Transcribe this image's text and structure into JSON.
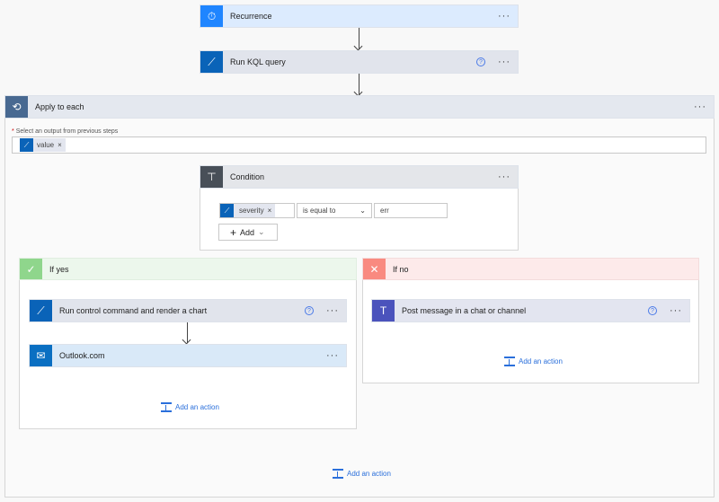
{
  "steps": {
    "recurrence": {
      "label": "Recurrence",
      "icon": "stopwatch-icon"
    },
    "kql": {
      "label": "Run KQL query",
      "icon": "kusto-icon"
    }
  },
  "apply": {
    "label": "Apply to each",
    "field_label": "Select an output from previous steps",
    "required_mark": "*",
    "token": "value",
    "remove": "×"
  },
  "condition": {
    "label": "Condition",
    "left_token": "severity",
    "remove": "×",
    "operator": "is equal to",
    "value": "err",
    "add_label": "Add"
  },
  "yes": {
    "label": "If yes",
    "actions": [
      "Run control command and render a chart",
      "Outlook.com"
    ],
    "add_action": "Add an action"
  },
  "no": {
    "label": "If no",
    "actions": [
      "Post message in a chat or channel"
    ],
    "add_action": "Add an action"
  },
  "bottom_add_action": "Add an action",
  "menu_dots": "···",
  "help": "?",
  "colors": {
    "recurrence": "#1f85ff",
    "kusto": "#0a63b8",
    "apply": "#486991",
    "condition": "#484f58",
    "yes": "#8fd68c",
    "no": "#f98a80",
    "teams": "#4b53bc",
    "outlook": "#0a6fc2"
  }
}
